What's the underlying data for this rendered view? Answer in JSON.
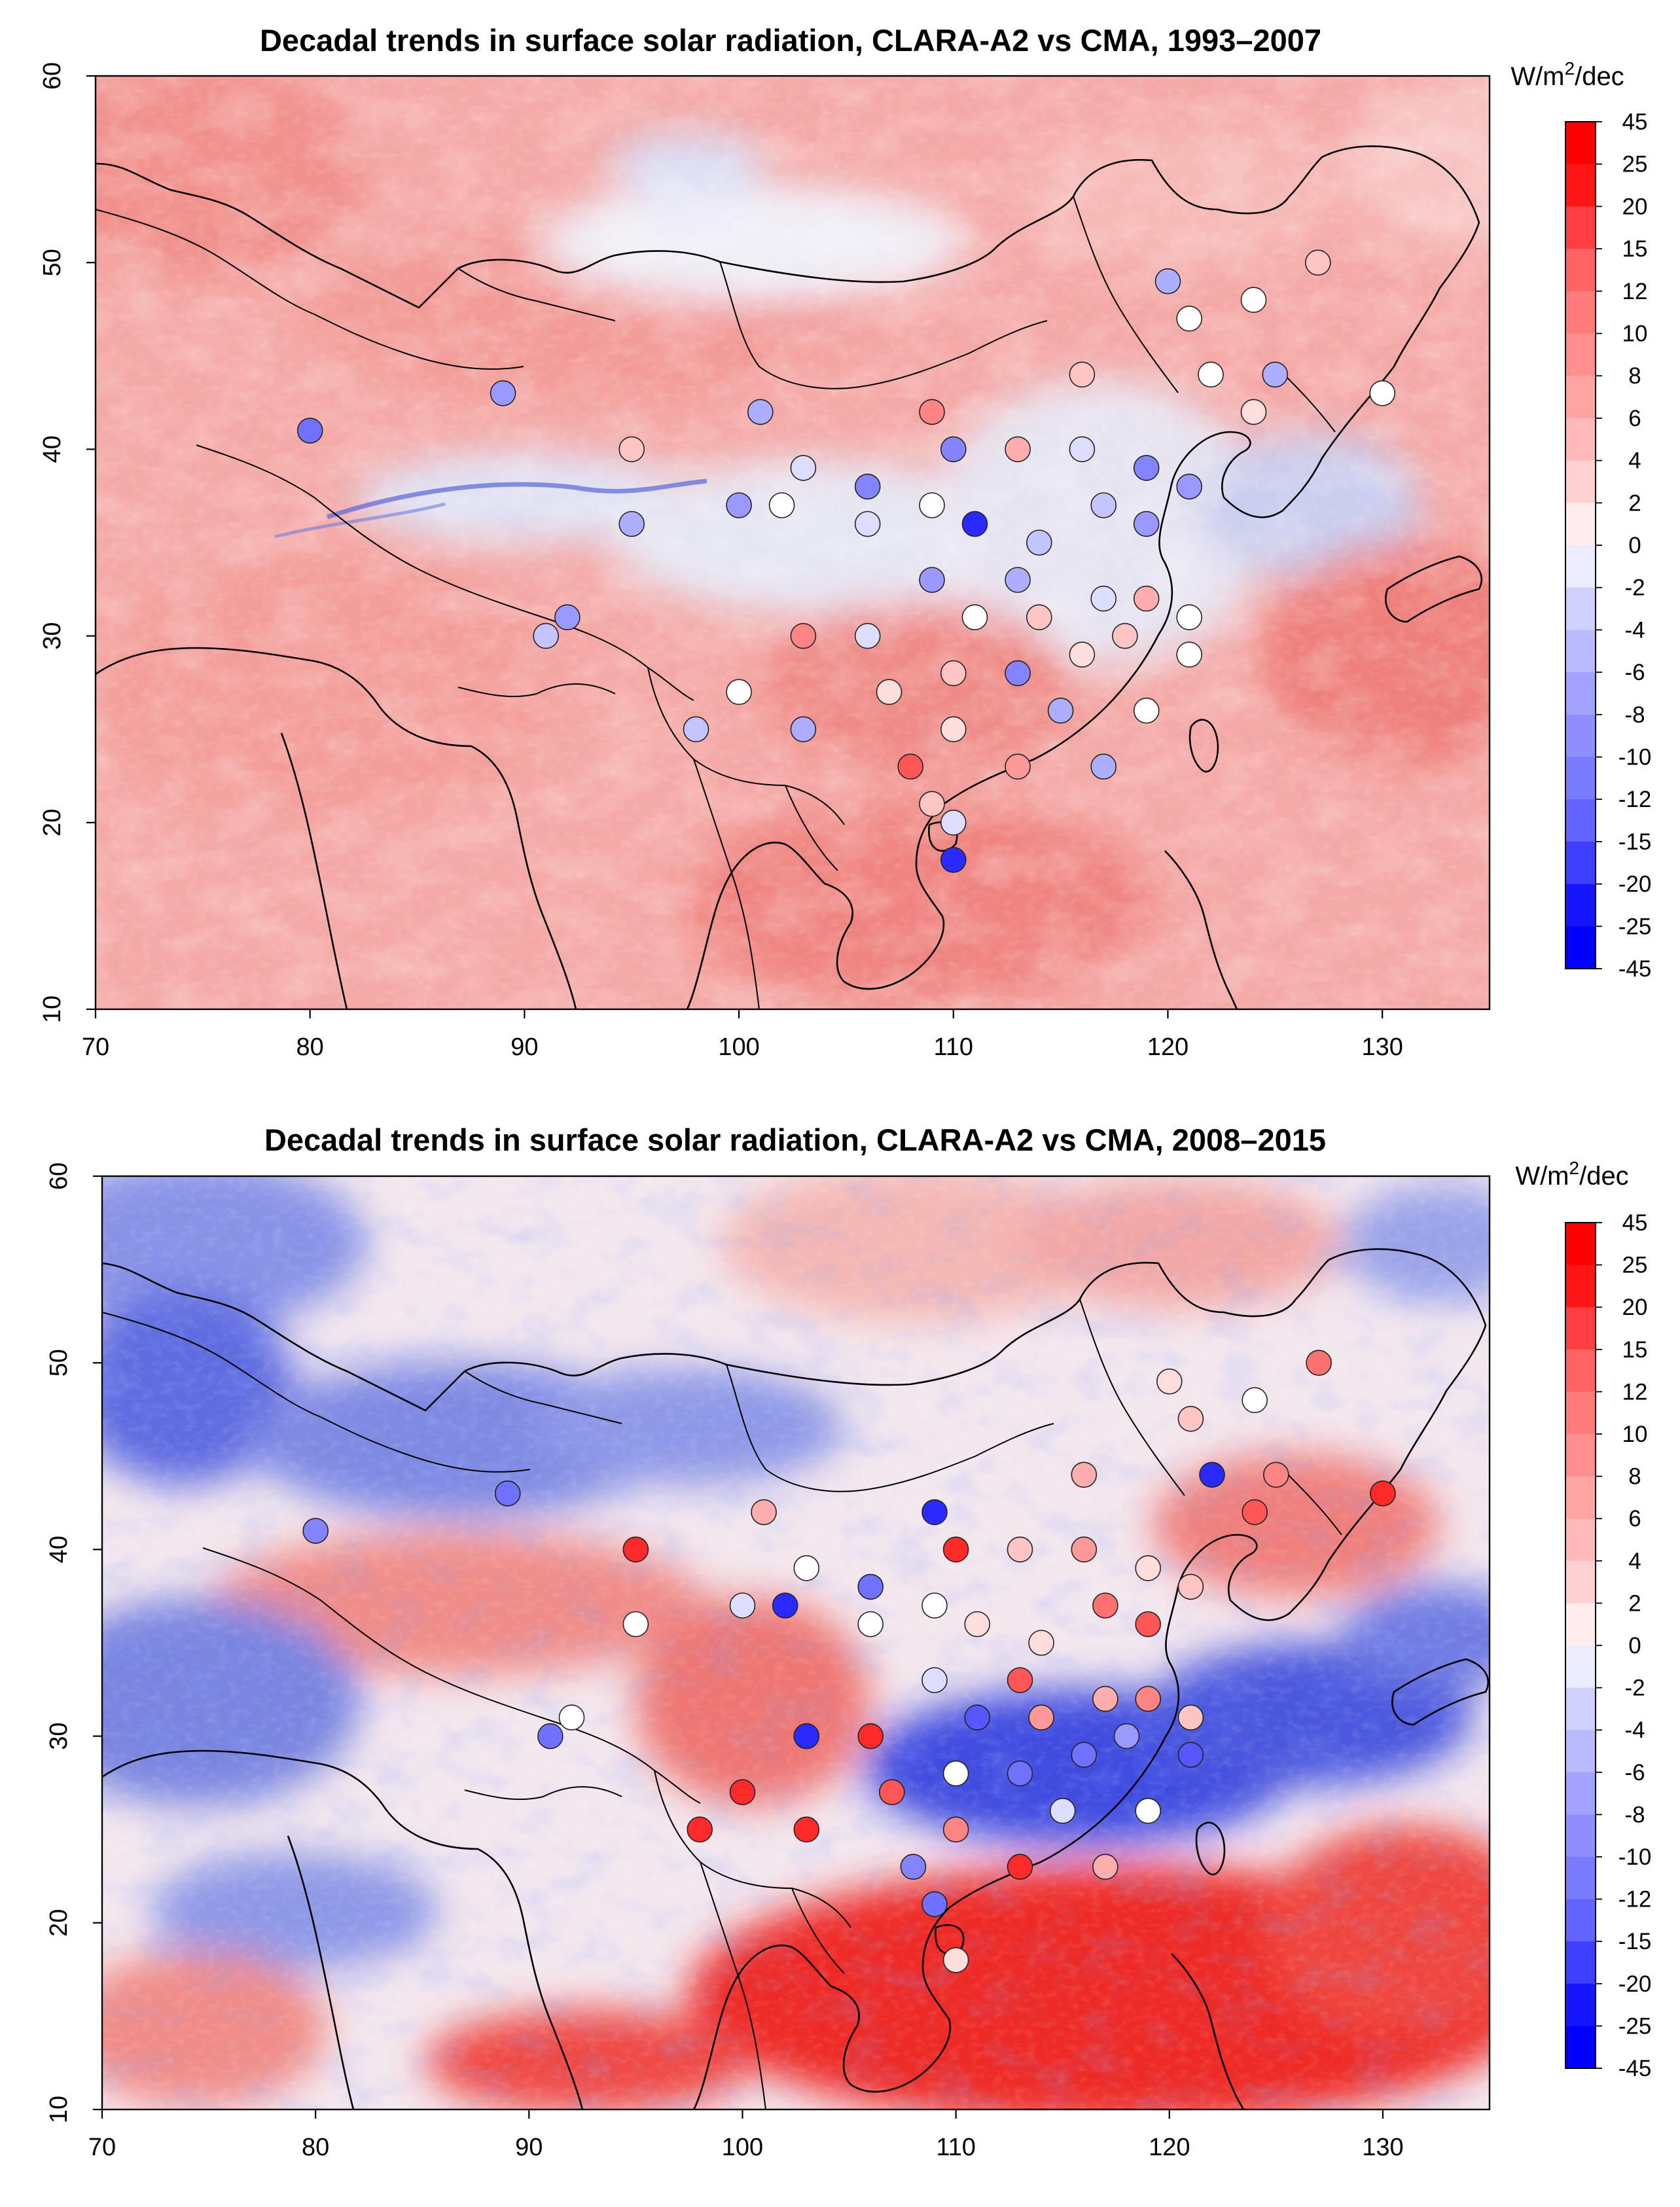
{
  "panels": [
    {
      "title": "Decadal trends in surface solar radiation, CLARA-A2 vs CMA, 1993–2007",
      "unit_prefix": "W/m",
      "unit_sup": "2",
      "unit_suffix": "/dec",
      "x_ticks": [
        "70",
        "80",
        "90",
        "100",
        "110",
        "120",
        "130"
      ],
      "y_ticks": [
        "10",
        "20",
        "30",
        "40",
        "50",
        "60"
      ],
      "colorbar_labels": [
        "45",
        "25",
        "20",
        "15",
        "12",
        "10",
        "8",
        "6",
        "4",
        "2",
        "0",
        "-2",
        "-4",
        "-6",
        "-8",
        "-10",
        "-12",
        "-15",
        "-20",
        "-25",
        "-45"
      ],
      "stations": [
        {
          "lon": 80,
          "lat": 41,
          "trend": -12
        },
        {
          "lon": 89,
          "lat": 43,
          "trend": -8
        },
        {
          "lon": 92,
          "lat": 31,
          "trend": -8
        },
        {
          "lon": 91,
          "lat": 30,
          "trend": -4
        },
        {
          "lon": 95,
          "lat": 40,
          "trend": 4
        },
        {
          "lon": 95,
          "lat": 36,
          "trend": -6
        },
        {
          "lon": 100,
          "lat": 37,
          "trend": -8
        },
        {
          "lon": 101,
          "lat": 42,
          "trend": -6
        },
        {
          "lon": 102,
          "lat": 37,
          "trend": 0
        },
        {
          "lon": 103,
          "lat": 39,
          "trend": -2
        },
        {
          "lon": 103,
          "lat": 30,
          "trend": 10
        },
        {
          "lon": 103,
          "lat": 25,
          "trend": -6
        },
        {
          "lon": 100,
          "lat": 27,
          "trend": 0
        },
        {
          "lon": 98,
          "lat": 25,
          "trend": -4
        },
        {
          "lon": 106,
          "lat": 38,
          "trend": -10
        },
        {
          "lon": 106,
          "lat": 36,
          "trend": -2
        },
        {
          "lon": 106,
          "lat": 30,
          "trend": -2
        },
        {
          "lon": 107,
          "lat": 27,
          "trend": 2
        },
        {
          "lon": 108,
          "lat": 23,
          "trend": 15
        },
        {
          "lon": 109,
          "lat": 42,
          "trend": 10
        },
        {
          "lon": 109,
          "lat": 37,
          "trend": 0
        },
        {
          "lon": 109,
          "lat": 33,
          "trend": -8
        },
        {
          "lon": 109,
          "lat": 21,
          "trend": 4
        },
        {
          "lon": 110,
          "lat": 40,
          "trend": -10
        },
        {
          "lon": 110,
          "lat": 28,
          "trend": 4
        },
        {
          "lon": 110,
          "lat": 25,
          "trend": 2
        },
        {
          "lon": 110,
          "lat": 20,
          "trend": -2
        },
        {
          "lon": 110,
          "lat": 18,
          "trend": -20
        },
        {
          "lon": 111,
          "lat": 36,
          "trend": -20
        },
        {
          "lon": 111,
          "lat": 31,
          "trend": 0
        },
        {
          "lon": 113,
          "lat": 40,
          "trend": 6
        },
        {
          "lon": 113,
          "lat": 33,
          "trend": -6
        },
        {
          "lon": 113,
          "lat": 28,
          "trend": -10
        },
        {
          "lon": 113,
          "lat": 23,
          "trend": 8
        },
        {
          "lon": 114,
          "lat": 35,
          "trend": -4
        },
        {
          "lon": 114,
          "lat": 31,
          "trend": 4
        },
        {
          "lon": 115,
          "lat": 26,
          "trend": -6
        },
        {
          "lon": 116,
          "lat": 44,
          "trend": 4
        },
        {
          "lon": 116,
          "lat": 40,
          "trend": -2
        },
        {
          "lon": 116,
          "lat": 29,
          "trend": 2
        },
        {
          "lon": 117,
          "lat": 37,
          "trend": -4
        },
        {
          "lon": 117,
          "lat": 32,
          "trend": -2
        },
        {
          "lon": 117,
          "lat": 23,
          "trend": -6
        },
        {
          "lon": 118,
          "lat": 30,
          "trend": 4
        },
        {
          "lon": 119,
          "lat": 39,
          "trend": -10
        },
        {
          "lon": 119,
          "lat": 36,
          "trend": -8
        },
        {
          "lon": 119,
          "lat": 32,
          "trend": 6
        },
        {
          "lon": 119,
          "lat": 26,
          "trend": 0
        },
        {
          "lon": 120,
          "lat": 49,
          "trend": -6
        },
        {
          "lon": 121,
          "lat": 47,
          "trend": 0
        },
        {
          "lon": 121,
          "lat": 38,
          "trend": -8
        },
        {
          "lon": 121,
          "lat": 31,
          "trend": 0
        },
        {
          "lon": 121,
          "lat": 29,
          "trend": 0
        },
        {
          "lon": 122,
          "lat": 44,
          "trend": 0
        },
        {
          "lon": 124,
          "lat": 48,
          "trend": 0
        },
        {
          "lon": 124,
          "lat": 42,
          "trend": 2
        },
        {
          "lon": 125,
          "lat": 44,
          "trend": -6
        },
        {
          "lon": 127,
          "lat": 50,
          "trend": 4
        },
        {
          "lon": 130,
          "lat": 43,
          "trend": 0
        }
      ]
    },
    {
      "title": "Decadal trends in surface solar radiation, CLARA-A2 vs CMA, 2008–2015",
      "unit_prefix": "W/m",
      "unit_sup": "2",
      "unit_suffix": "/dec",
      "x_ticks": [
        "70",
        "80",
        "90",
        "100",
        "110",
        "120",
        "130"
      ],
      "y_ticks": [
        "10",
        "20",
        "30",
        "40",
        "50",
        "60"
      ],
      "colorbar_labels": [
        "45",
        "25",
        "20",
        "15",
        "12",
        "10",
        "8",
        "6",
        "4",
        "2",
        "0",
        "-2",
        "-4",
        "-6",
        "-8",
        "-10",
        "-12",
        "-15",
        "-20",
        "-25",
        "-45"
      ],
      "stations": [
        {
          "lon": 80,
          "lat": 41,
          "trend": -10
        },
        {
          "lon": 89,
          "lat": 43,
          "trend": -12
        },
        {
          "lon": 92,
          "lat": 31,
          "trend": 0
        },
        {
          "lon": 91,
          "lat": 30,
          "trend": -12
        },
        {
          "lon": 95,
          "lat": 40,
          "trend": 20
        },
        {
          "lon": 95,
          "lat": 36,
          "trend": 0
        },
        {
          "lon": 98,
          "lat": 25,
          "trend": 20
        },
        {
          "lon": 100,
          "lat": 37,
          "trend": -2
        },
        {
          "lon": 100,
          "lat": 27,
          "trend": 20
        },
        {
          "lon": 101,
          "lat": 42,
          "trend": 6
        },
        {
          "lon": 102,
          "lat": 37,
          "trend": -20
        },
        {
          "lon": 103,
          "lat": 39,
          "trend": 0
        },
        {
          "lon": 103,
          "lat": 30,
          "trend": -20
        },
        {
          "lon": 103,
          "lat": 25,
          "trend": 20
        },
        {
          "lon": 106,
          "lat": 38,
          "trend": -12
        },
        {
          "lon": 106,
          "lat": 36,
          "trend": 0
        },
        {
          "lon": 106,
          "lat": 30,
          "trend": 20
        },
        {
          "lon": 107,
          "lat": 27,
          "trend": 15
        },
        {
          "lon": 108,
          "lat": 23,
          "trend": -10
        },
        {
          "lon": 109,
          "lat": 42,
          "trend": -20
        },
        {
          "lon": 109,
          "lat": 37,
          "trend": 0
        },
        {
          "lon": 109,
          "lat": 33,
          "trend": -2
        },
        {
          "lon": 109,
          "lat": 21,
          "trend": -12
        },
        {
          "lon": 110,
          "lat": 40,
          "trend": 20
        },
        {
          "lon": 110,
          "lat": 28,
          "trend": 0
        },
        {
          "lon": 110,
          "lat": 25,
          "trend": 10
        },
        {
          "lon": 110,
          "lat": 18,
          "trend": 2
        },
        {
          "lon": 111,
          "lat": 36,
          "trend": 2
        },
        {
          "lon": 111,
          "lat": 31,
          "trend": -15
        },
        {
          "lon": 113,
          "lat": 40,
          "trend": 4
        },
        {
          "lon": 113,
          "lat": 33,
          "trend": 15
        },
        {
          "lon": 113,
          "lat": 28,
          "trend": -12
        },
        {
          "lon": 113,
          "lat": 23,
          "trend": 20
        },
        {
          "lon": 114,
          "lat": 35,
          "trend": 2
        },
        {
          "lon": 114,
          "lat": 31,
          "trend": 8
        },
        {
          "lon": 115,
          "lat": 26,
          "trend": -2
        },
        {
          "lon": 116,
          "lat": 44,
          "trend": 6
        },
        {
          "lon": 116,
          "lat": 40,
          "trend": 8
        },
        {
          "lon": 116,
          "lat": 29,
          "trend": -12
        },
        {
          "lon": 117,
          "lat": 37,
          "trend": 12
        },
        {
          "lon": 117,
          "lat": 32,
          "trend": 6
        },
        {
          "lon": 117,
          "lat": 23,
          "trend": 6
        },
        {
          "lon": 118,
          "lat": 30,
          "trend": -8
        },
        {
          "lon": 119,
          "lat": 39,
          "trend": 2
        },
        {
          "lon": 119,
          "lat": 36,
          "trend": 15
        },
        {
          "lon": 119,
          "lat": 32,
          "trend": 10
        },
        {
          "lon": 119,
          "lat": 26,
          "trend": 0
        },
        {
          "lon": 120,
          "lat": 49,
          "trend": 2
        },
        {
          "lon": 121,
          "lat": 47,
          "trend": 4
        },
        {
          "lon": 121,
          "lat": 38,
          "trend": 4
        },
        {
          "lon": 121,
          "lat": 31,
          "trend": 4
        },
        {
          "lon": 121,
          "lat": 29,
          "trend": -15
        },
        {
          "lon": 122,
          "lat": 44,
          "trend": -20
        },
        {
          "lon": 124,
          "lat": 48,
          "trend": 0
        },
        {
          "lon": 124,
          "lat": 42,
          "trend": 15
        },
        {
          "lon": 125,
          "lat": 44,
          "trend": 10
        },
        {
          "lon": 127,
          "lat": 50,
          "trend": 12
        },
        {
          "lon": 130,
          "lat": 43,
          "trend": 20
        }
      ]
    }
  ]
}
